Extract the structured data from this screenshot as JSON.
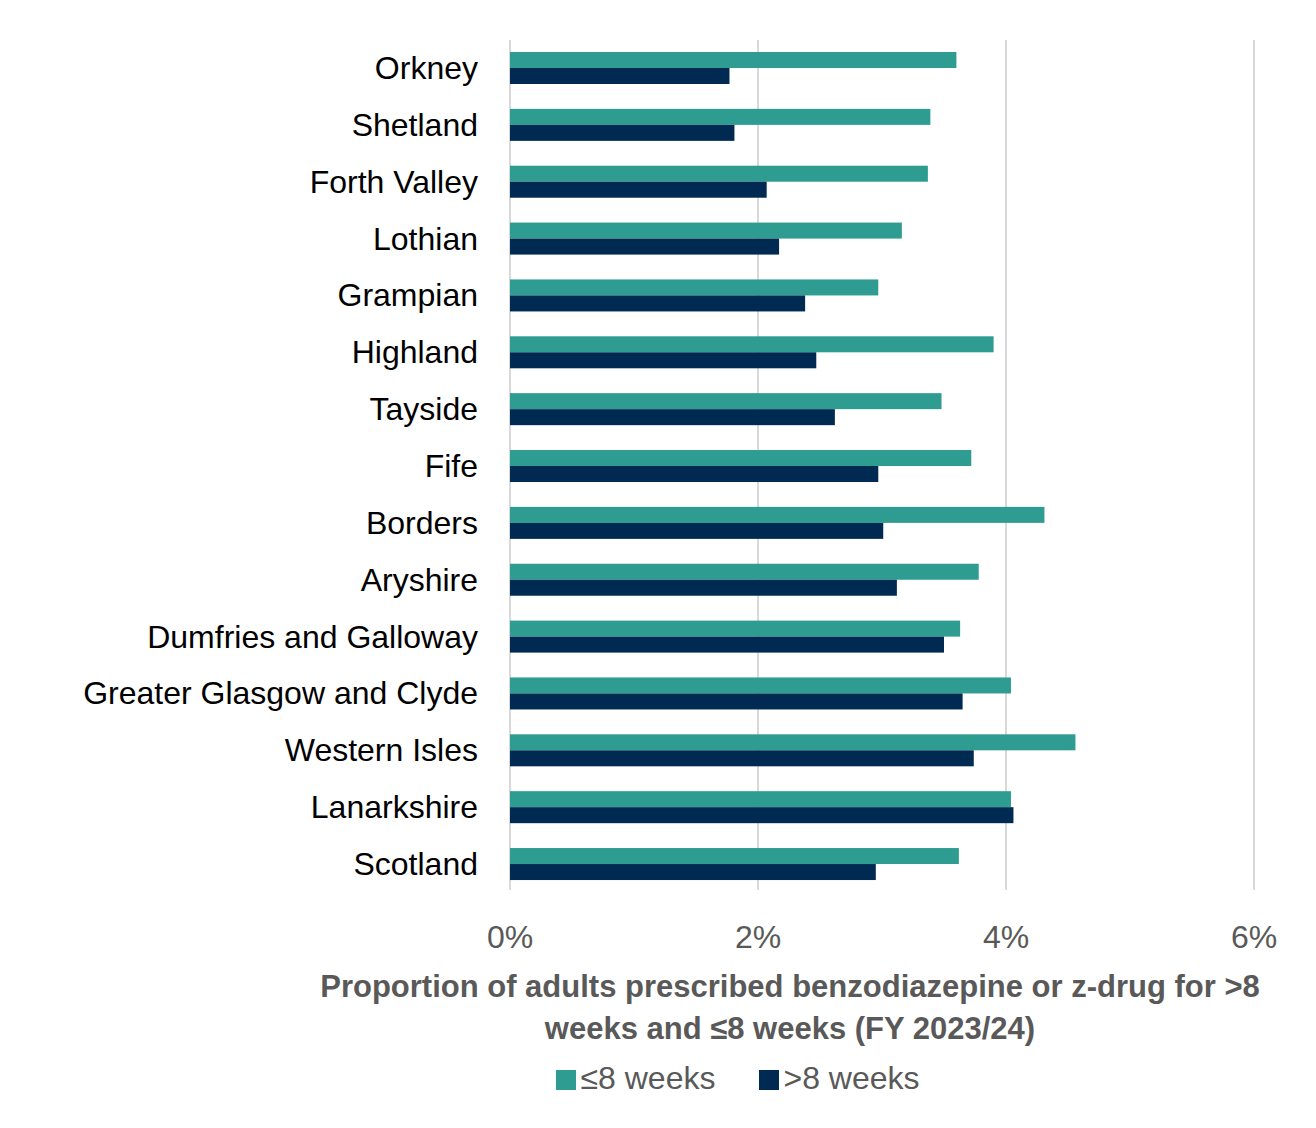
{
  "chart_data": {
    "type": "bar",
    "orientation": "horizontal",
    "x_label": "Proportion of adults prescribed benzodiazepine or z-drug for >8 weeks and ≤8 weeks (FY 2023/24)",
    "categories": [
      "Orkney",
      "Shetland",
      "Forth Valley",
      "Lothian",
      "Grampian",
      "Highland",
      "Tayside",
      "Fife",
      "Borders",
      "Aryshire",
      "Dumfries and Galloway",
      "Greater Glasgow and Clyde",
      "Western Isles",
      "Lanarkshire",
      "Scotland"
    ],
    "series": [
      {
        "name": "≤8 weeks",
        "color": "#2E9C90",
        "values": [
          3.6,
          3.39,
          3.37,
          3.16,
          2.97,
          3.9,
          3.48,
          3.72,
          4.31,
          3.78,
          3.63,
          4.04,
          4.56,
          4.04,
          3.62
        ]
      },
      {
        "name": ">8 weeks",
        "color": "#002A52",
        "values": [
          1.77,
          1.81,
          2.07,
          2.17,
          2.38,
          2.47,
          2.62,
          2.97,
          3.01,
          3.12,
          3.5,
          3.65,
          3.74,
          4.06,
          2.95
        ]
      }
    ],
    "xlim": [
      0,
      6
    ],
    "xticks": [
      {
        "value": 0,
        "label": "0%"
      },
      {
        "value": 2,
        "label": "2%"
      },
      {
        "value": 4,
        "label": "4%"
      },
      {
        "value": 6,
        "label": "6%"
      }
    ],
    "grid": true,
    "legend": "bottom"
  }
}
